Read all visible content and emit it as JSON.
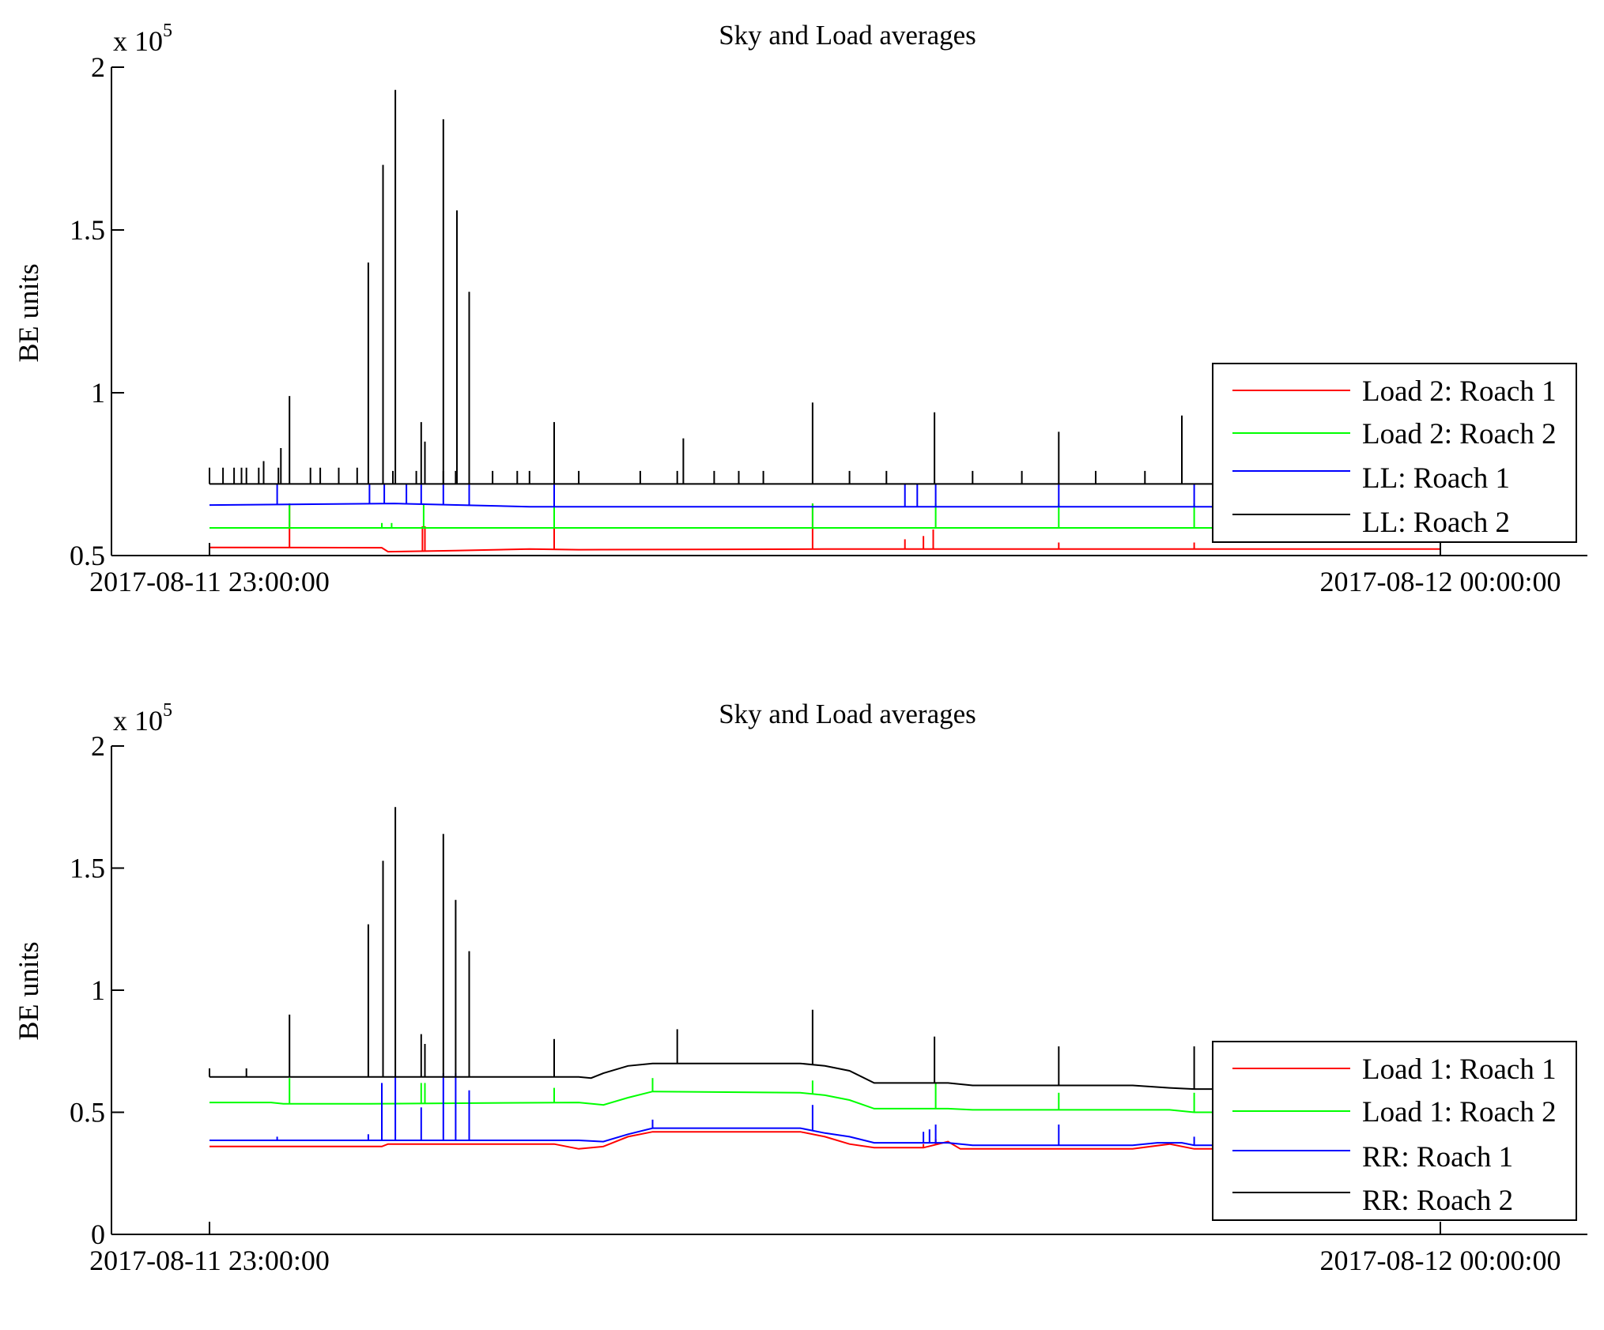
{
  "chart_data": [
    {
      "type": "line",
      "title": "Sky and Load averages",
      "ylabel": "BE units",
      "y_multiplier": {
        "base": "x 10",
        "exponent": "5"
      },
      "ylim": [
        50000,
        200000
      ],
      "yticks": [
        {
          "value": 50000,
          "label": "0.5"
        },
        {
          "value": 100000,
          "label": "1"
        },
        {
          "value": 150000,
          "label": "1.5"
        },
        {
          "value": 200000,
          "label": "2"
        }
      ],
      "xticks": [
        "2017-08-11 23:00:00",
        "2017-08-12 00:00:00"
      ],
      "legend_position": "right",
      "series": [
        {
          "name": "Load 2: Roach 1",
          "color": "#ff0000",
          "points": [
            [
              0,
              52500
            ],
            [
              0.14,
              52400
            ],
            [
              0.145,
              51200
            ],
            [
              0.2,
              51500
            ],
            [
              0.26,
              52000
            ],
            [
              0.3,
              51800
            ],
            [
              0.5,
              52000
            ],
            [
              0.8,
              52000
            ],
            [
              1,
              52000
            ]
          ],
          "spikes": [
            [
              0.065,
              66000
            ],
            [
              0.173,
              59000
            ],
            [
              0.175,
              59000
            ],
            [
              0.28,
              59000
            ],
            [
              0.49,
              66000
            ],
            [
              0.565,
              55000
            ],
            [
              0.58,
              56000
            ],
            [
              0.588,
              58000
            ],
            [
              0.69,
              54000
            ],
            [
              0.8,
              54000
            ]
          ]
        },
        {
          "name": "Load 2: Roach 2",
          "color": "#00ff00",
          "points": [
            [
              0,
              58500
            ],
            [
              1,
              58500
            ]
          ],
          "spikes": [
            [
              0.065,
              66000
            ],
            [
              0.14,
              60000
            ],
            [
              0.148,
              60000
            ],
            [
              0.174,
              66000
            ],
            [
              0.28,
              66000
            ],
            [
              0.49,
              66000
            ],
            [
              0.59,
              66000
            ],
            [
              0.69,
              66000
            ],
            [
              0.8,
              66000
            ]
          ]
        },
        {
          "name": "LL: Roach 1",
          "color": "#0000ff",
          "points": [
            [
              0,
              65500
            ],
            [
              0.15,
              66000
            ],
            [
              0.26,
              65000
            ],
            [
              0.6,
              65000
            ],
            [
              1,
              65000
            ]
          ],
          "spikes": [
            [
              0.055,
              72000
            ],
            [
              0.13,
              72000
            ],
            [
              0.142,
              72000
            ],
            [
              0.16,
              72000
            ],
            [
              0.172,
              72000
            ],
            [
              0.19,
              72000
            ],
            [
              0.211,
              72000
            ],
            [
              0.28,
              72000
            ],
            [
              0.565,
              72000
            ],
            [
              0.575,
              72000
            ],
            [
              0.59,
              72000
            ],
            [
              0.69,
              72000
            ],
            [
              0.8,
              72000
            ]
          ]
        },
        {
          "name": "LL: Roach 2",
          "color": "#000000",
          "points": [
            [
              0,
              72000
            ],
            [
              1,
              72000
            ]
          ],
          "spikes": [
            [
              0.0,
              77000
            ],
            [
              0.011,
              77000
            ],
            [
              0.02,
              77000
            ],
            [
              0.026,
              77000
            ],
            [
              0.03,
              77000
            ],
            [
              0.04,
              77000
            ],
            [
              0.044,
              79000
            ],
            [
              0.056,
              77000
            ],
            [
              0.058,
              83000
            ],
            [
              0.065,
              99000
            ],
            [
              0.082,
              77000
            ],
            [
              0.09,
              77000
            ],
            [
              0.105,
              77000
            ],
            [
              0.12,
              77000
            ],
            [
              0.129,
              140000
            ],
            [
              0.141,
              170000
            ],
            [
              0.149,
              76000
            ],
            [
              0.151,
              193000
            ],
            [
              0.168,
              76000
            ],
            [
              0.172,
              91000
            ],
            [
              0.175,
              85000
            ],
            [
              0.19,
              76000
            ],
            [
              0.19,
              184000
            ],
            [
              0.2,
              76000
            ],
            [
              0.201,
              156000
            ],
            [
              0.211,
              131000
            ],
            [
              0.23,
              76000
            ],
            [
              0.25,
              76000
            ],
            [
              0.26,
              76000
            ],
            [
              0.28,
              91000
            ],
            [
              0.3,
              76000
            ],
            [
              0.35,
              76000
            ],
            [
              0.38,
              76000
            ],
            [
              0.385,
              86000
            ],
            [
              0.41,
              76000
            ],
            [
              0.43,
              76000
            ],
            [
              0.45,
              76000
            ],
            [
              0.49,
              97000
            ],
            [
              0.52,
              76000
            ],
            [
              0.55,
              76000
            ],
            [
              0.589,
              94000
            ],
            [
              0.62,
              76000
            ],
            [
              0.66,
              76000
            ],
            [
              0.69,
              88000
            ],
            [
              0.72,
              76000
            ],
            [
              0.76,
              76000
            ],
            [
              0.79,
              93000
            ]
          ]
        }
      ]
    },
    {
      "type": "line",
      "title": "Sky and Load averages",
      "ylabel": "BE units",
      "y_multiplier": {
        "base": "x 10",
        "exponent": "5"
      },
      "ylim": [
        0,
        200000
      ],
      "yticks": [
        {
          "value": 0,
          "label": "0"
        },
        {
          "value": 50000,
          "label": "0.5"
        },
        {
          "value": 100000,
          "label": "1"
        },
        {
          "value": 150000,
          "label": "1.5"
        },
        {
          "value": 200000,
          "label": "2"
        }
      ],
      "xticks": [
        "2017-08-11 23:00:00",
        "2017-08-12 00:00:00"
      ],
      "legend_position": "right",
      "series": [
        {
          "name": "Load 1: Roach 1",
          "color": "#ff0000",
          "points": [
            [
              0,
              36000
            ],
            [
              0.14,
              36000
            ],
            [
              0.145,
              37000
            ],
            [
              0.28,
              37000
            ],
            [
              0.3,
              35000
            ],
            [
              0.32,
              36000
            ],
            [
              0.34,
              40000
            ],
            [
              0.36,
              42000
            ],
            [
              0.48,
              42000
            ],
            [
              0.5,
              40000
            ],
            [
              0.52,
              37000
            ],
            [
              0.54,
              35500
            ],
            [
              0.58,
              35500
            ],
            [
              0.6,
              38000
            ],
            [
              0.61,
              35000
            ],
            [
              0.7,
              35000
            ],
            [
              0.75,
              35000
            ],
            [
              0.78,
              37000
            ],
            [
              0.8,
              35000
            ],
            [
              1,
              35000
            ]
          ],
          "spikes": [
            [
              0.58,
              37000
            ],
            [
              0.59,
              39000
            ],
            [
              0.59,
              39000
            ]
          ]
        },
        {
          "name": "Load 1: Roach 2",
          "color": "#00ff00",
          "points": [
            [
              0,
              54000
            ],
            [
              0.05,
              54000
            ],
            [
              0.06,
              53500
            ],
            [
              0.13,
              53500
            ],
            [
              0.3,
              54000
            ],
            [
              0.32,
              53000
            ],
            [
              0.34,
              56000
            ],
            [
              0.36,
              58500
            ],
            [
              0.48,
              58000
            ],
            [
              0.5,
              57000
            ],
            [
              0.52,
              55000
            ],
            [
              0.54,
              51500
            ],
            [
              0.6,
              51500
            ],
            [
              0.62,
              51000
            ],
            [
              0.75,
              51000
            ],
            [
              0.78,
              51000
            ],
            [
              0.8,
              50000
            ],
            [
              1,
              50000
            ]
          ],
          "spikes": [
            [
              0.065,
              64000
            ],
            [
              0.172,
              62000
            ],
            [
              0.175,
              62000
            ],
            [
              0.28,
              60000
            ],
            [
              0.36,
              64000
            ],
            [
              0.49,
              63000
            ],
            [
              0.59,
              62000
            ],
            [
              0.69,
              58000
            ],
            [
              0.8,
              58000
            ]
          ]
        },
        {
          "name": "RR: Roach 1",
          "color": "#0000ff",
          "points": [
            [
              0,
              38500
            ],
            [
              0.14,
              38500
            ],
            [
              0.3,
              38500
            ],
            [
              0.32,
              38000
            ],
            [
              0.34,
              41000
            ],
            [
              0.36,
              43500
            ],
            [
              0.48,
              43500
            ],
            [
              0.5,
              41500
            ],
            [
              0.52,
              40000
            ],
            [
              0.54,
              37500
            ],
            [
              0.6,
              37500
            ],
            [
              0.62,
              36500
            ],
            [
              0.75,
              36500
            ],
            [
              0.77,
              37500
            ],
            [
              0.79,
              37500
            ],
            [
              0.8,
              36500
            ],
            [
              1,
              36500
            ]
          ],
          "spikes": [
            [
              0.055,
              40000
            ],
            [
              0.129,
              41000
            ],
            [
              0.14,
              62000
            ],
            [
              0.151,
              65000
            ],
            [
              0.172,
              52000
            ],
            [
              0.19,
              66000
            ],
            [
              0.2,
              66000
            ],
            [
              0.211,
              59000
            ],
            [
              0.36,
              47000
            ],
            [
              0.49,
              53000
            ],
            [
              0.58,
              42000
            ],
            [
              0.585,
              43000
            ],
            [
              0.59,
              45000
            ],
            [
              0.69,
              45000
            ],
            [
              0.8,
              40000
            ]
          ]
        },
        {
          "name": "RR: Roach 2",
          "color": "#000000",
          "points": [
            [
              0,
              64500
            ],
            [
              0.14,
              64500
            ],
            [
              0.3,
              64500
            ],
            [
              0.31,
              64000
            ],
            [
              0.32,
              66000
            ],
            [
              0.34,
              69000
            ],
            [
              0.36,
              70000
            ],
            [
              0.48,
              70000
            ],
            [
              0.5,
              69000
            ],
            [
              0.52,
              67000
            ],
            [
              0.54,
              62000
            ],
            [
              0.6,
              62000
            ],
            [
              0.62,
              61000
            ],
            [
              0.75,
              61000
            ],
            [
              0.78,
              60000
            ],
            [
              0.8,
              59500
            ],
            [
              1,
              59500
            ]
          ],
          "spikes": [
            [
              0.0,
              68000
            ],
            [
              0.03,
              68000
            ],
            [
              0.065,
              90000
            ],
            [
              0.129,
              127000
            ],
            [
              0.141,
              153000
            ],
            [
              0.151,
              175000
            ],
            [
              0.172,
              82000
            ],
            [
              0.175,
              78000
            ],
            [
              0.19,
              164000
            ],
            [
              0.2,
              137000
            ],
            [
              0.211,
              116000
            ],
            [
              0.28,
              80000
            ],
            [
              0.38,
              84000
            ],
            [
              0.49,
              92000
            ],
            [
              0.589,
              81000
            ],
            [
              0.69,
              77000
            ],
            [
              0.8,
              77000
            ]
          ]
        }
      ]
    }
  ]
}
